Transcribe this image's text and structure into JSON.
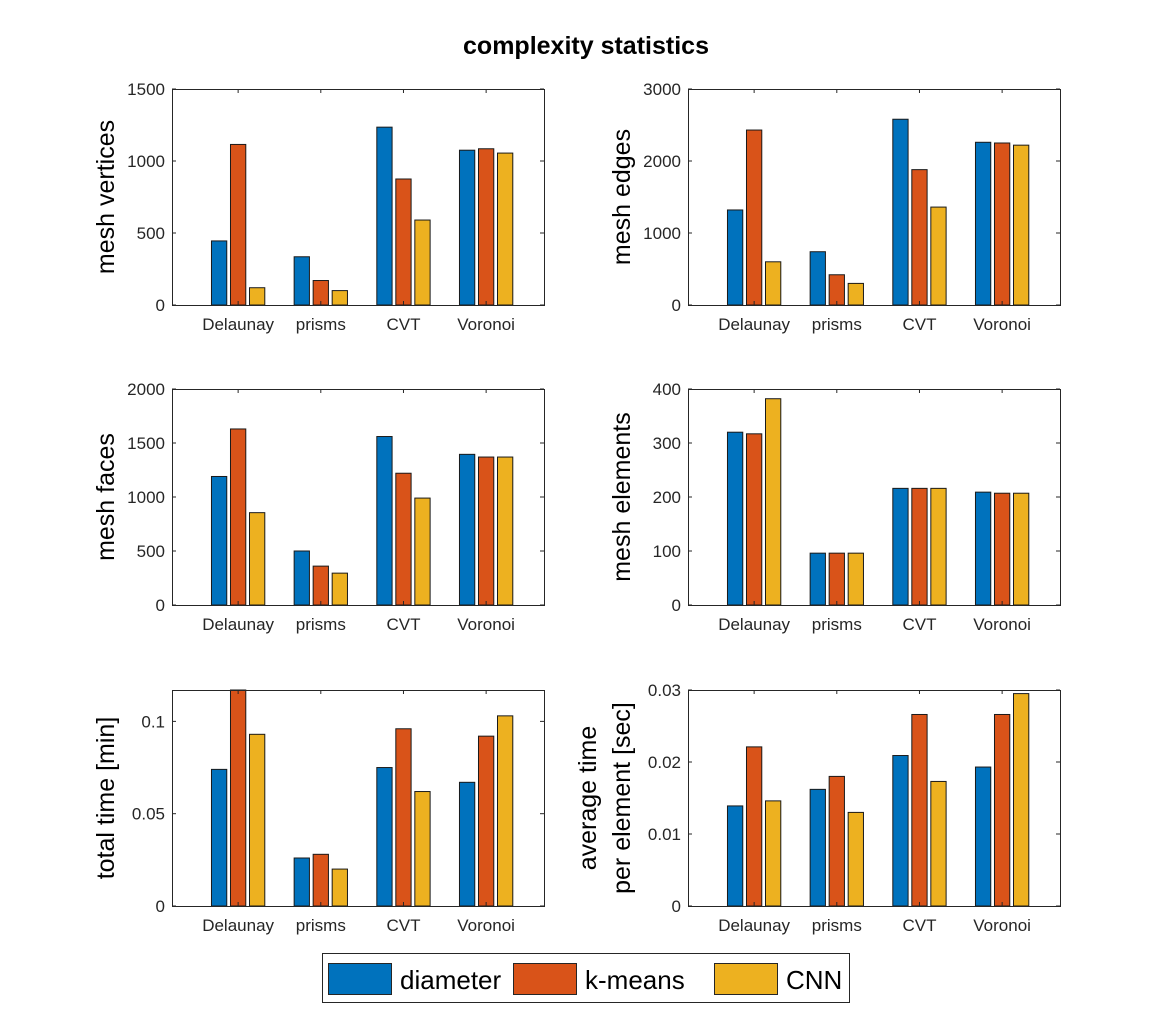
{
  "title": "complexity statistics",
  "colors": {
    "diameter": "#0072BD",
    "k-means": "#D95319",
    "CNN": "#EDB120",
    "axis": "#262626"
  },
  "legend": {
    "location": "bottom-center",
    "items": [
      "diameter",
      "k-means",
      "CNN"
    ]
  },
  "chart_data": [
    {
      "type": "bar",
      "ylabel": [
        "mesh vertices"
      ],
      "categories": [
        "Delaunay",
        "prisms",
        "CVT",
        "Voronoi"
      ],
      "ylim": [
        0,
        1500
      ],
      "yticks": [
        0,
        500,
        1000,
        1500
      ],
      "ytick_labels": [
        "0",
        "500",
        "1000",
        "1500"
      ],
      "series": [
        {
          "name": "diameter",
          "values": [
            445,
            335,
            1235,
            1075
          ]
        },
        {
          "name": "k-means",
          "values": [
            1115,
            170,
            875,
            1085
          ]
        },
        {
          "name": "CNN",
          "values": [
            120,
            100,
            590,
            1055
          ]
        }
      ]
    },
    {
      "type": "bar",
      "ylabel": [
        "mesh edges"
      ],
      "categories": [
        "Delaunay",
        "prisms",
        "CVT",
        "Voronoi"
      ],
      "ylim": [
        0,
        3000
      ],
      "yticks": [
        0,
        1000,
        2000,
        3000
      ],
      "ytick_labels": [
        "0",
        "1000",
        "2000",
        "3000"
      ],
      "series": [
        {
          "name": "diameter",
          "values": [
            1320,
            740,
            2580,
            2260
          ]
        },
        {
          "name": "k-means",
          "values": [
            2430,
            420,
            1880,
            2250
          ]
        },
        {
          "name": "CNN",
          "values": [
            600,
            300,
            1360,
            2220
          ]
        }
      ]
    },
    {
      "type": "bar",
      "ylabel": [
        "mesh faces"
      ],
      "categories": [
        "Delaunay",
        "prisms",
        "CVT",
        "Voronoi"
      ],
      "ylim": [
        0,
        2000
      ],
      "yticks": [
        0,
        500,
        1000,
        1500,
        2000
      ],
      "ytick_labels": [
        "0",
        "500",
        "1000",
        "1500",
        "2000"
      ],
      "series": [
        {
          "name": "diameter",
          "values": [
            1190,
            500,
            1560,
            1395
          ]
        },
        {
          "name": "k-means",
          "values": [
            1630,
            360,
            1220,
            1370
          ]
        },
        {
          "name": "CNN",
          "values": [
            855,
            295,
            990,
            1370
          ]
        }
      ]
    },
    {
      "type": "bar",
      "ylabel": [
        "mesh elements"
      ],
      "categories": [
        "Delaunay",
        "prisms",
        "CVT",
        "Voronoi"
      ],
      "ylim": [
        0,
        400
      ],
      "yticks": [
        0,
        100,
        200,
        300,
        400
      ],
      "ytick_labels": [
        "0",
        "100",
        "200",
        "300",
        "400"
      ],
      "series": [
        {
          "name": "diameter",
          "values": [
            320,
            96,
            216,
            209
          ]
        },
        {
          "name": "k-means",
          "values": [
            317,
            96,
            216,
            207
          ]
        },
        {
          "name": "CNN",
          "values": [
            382,
            96,
            216,
            207
          ]
        }
      ]
    },
    {
      "type": "bar",
      "ylabel": [
        "total time [min]"
      ],
      "categories": [
        "Delaunay",
        "prisms",
        "CVT",
        "Voronoi"
      ],
      "ylim": [
        0,
        0.117
      ],
      "yticks": [
        0,
        0.05,
        0.1
      ],
      "ytick_labels": [
        "0",
        "0.05",
        "0.1"
      ],
      "series": [
        {
          "name": "diameter",
          "values": [
            0.074,
            0.026,
            0.075,
            0.067
          ]
        },
        {
          "name": "k-means",
          "values": [
            0.117,
            0.028,
            0.096,
            0.092
          ]
        },
        {
          "name": "CNN",
          "values": [
            0.093,
            0.02,
            0.062,
            0.103
          ]
        }
      ]
    },
    {
      "type": "bar",
      "ylabel": [
        "average time",
        "per element [sec]"
      ],
      "categories": [
        "Delaunay",
        "prisms",
        "CVT",
        "Voronoi"
      ],
      "ylim": [
        0,
        0.03
      ],
      "yticks": [
        0,
        0.01,
        0.02,
        0.03
      ],
      "ytick_labels": [
        "0",
        "0.01",
        "0.02",
        "0.03"
      ],
      "series": [
        {
          "name": "diameter",
          "values": [
            0.0139,
            0.0162,
            0.0209,
            0.0193
          ]
        },
        {
          "name": "k-means",
          "values": [
            0.0221,
            0.018,
            0.0266,
            0.0266
          ]
        },
        {
          "name": "CNN",
          "values": [
            0.0146,
            0.013,
            0.0173,
            0.0295
          ]
        }
      ]
    }
  ]
}
